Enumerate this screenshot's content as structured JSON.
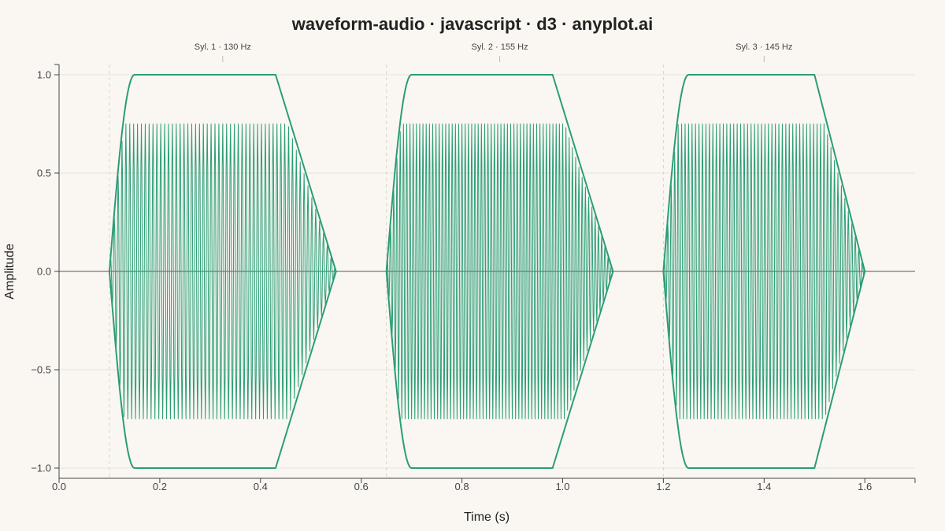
{
  "chart_data": {
    "type": "line",
    "title": "waveform-audio · javascript · d3 · anyplot.ai",
    "xlabel": "Time (s)",
    "ylabel": "Amplitude",
    "xlim": [
      0,
      1.7
    ],
    "ylim": [
      -1.05,
      1.05
    ],
    "x_ticks": [
      "0.0",
      "0.2",
      "0.4",
      "0.6",
      "0.8",
      "1.0",
      "1.2",
      "1.4",
      "1.6"
    ],
    "y_ticks": [
      "1.0",
      "0.5",
      "0.0",
      "−0.5",
      "−1.0"
    ],
    "grid": "horizontal",
    "color": "#2a9d76",
    "syllables": [
      {
        "label": "Syl. 1 · 130 Hz",
        "freq": 130,
        "start": 0.1,
        "end": 0.55,
        "label_x": 0.325
      },
      {
        "label": "Syl. 2 · 155 Hz",
        "freq": 155,
        "start": 0.65,
        "end": 1.1,
        "label_x": 0.875
      },
      {
        "label": "Syl. 3 · 145 Hz",
        "freq": 145,
        "start": 1.2,
        "end": 1.6,
        "label_x": 1.4
      }
    ],
    "series": [
      {
        "values": "waveform samples: 0.75 × envelope × sin(2π·f·t) within each syllable, 0 elsewhere"
      },
      {
        "values": "amplitude envelope: rises 0→1 over 0.05 s, holds 1.0 until 0.43 / 0.98 / 1.50 s, falls linearly to 0 at syllable end; mirrored at −1"
      }
    ]
  }
}
